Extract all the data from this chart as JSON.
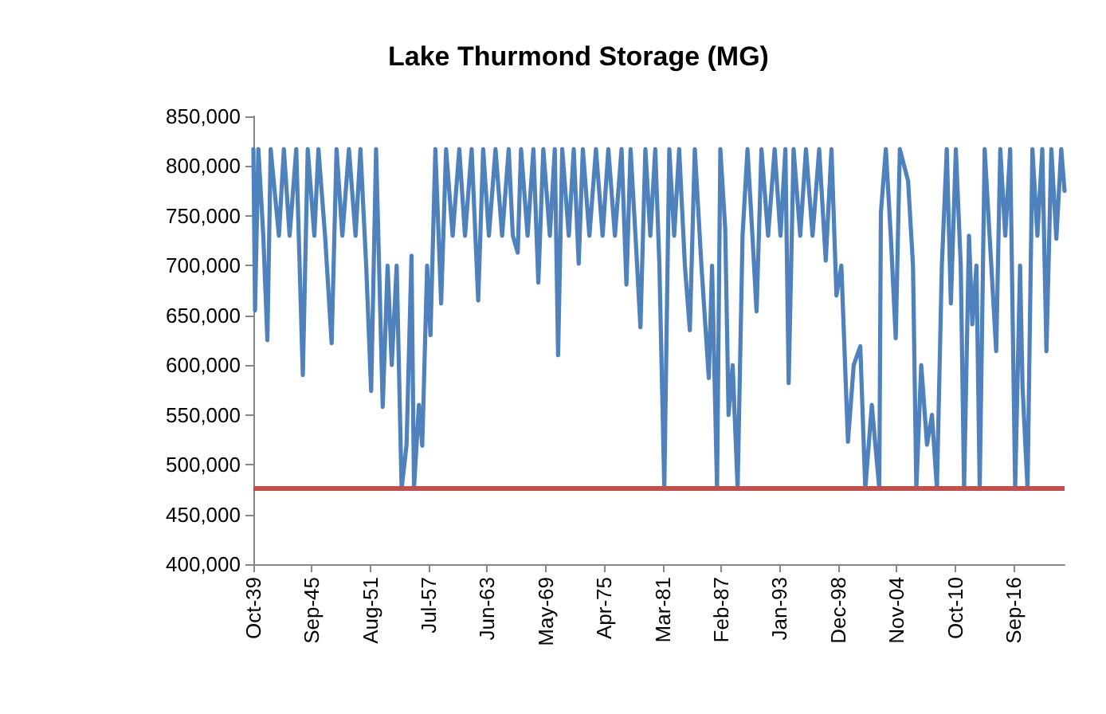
{
  "chart_data": {
    "type": "line",
    "title": "Lake Thurmond Storage (MG)",
    "x": [
      "1939-10",
      "1939-12",
      "1940-04",
      "1940-10",
      "1941-03",
      "1941-07",
      "1942-05",
      "1942-11",
      "1943-06",
      "1944-02",
      "1944-10",
      "1945-04",
      "1945-12",
      "1946-05",
      "1947-01",
      "1947-09",
      "1948-03",
      "1948-10",
      "1949-06",
      "1950-02",
      "1950-08",
      "1951-03",
      "1951-09",
      "1952-03",
      "1952-11",
      "1953-05",
      "1953-10",
      "1954-04",
      "1954-10",
      "1955-04",
      "1955-10",
      "1956-01",
      "1956-07",
      "1956-11",
      "1957-05",
      "1957-09",
      "1958-03",
      "1958-10",
      "1959-04",
      "1959-12",
      "1960-08",
      "1961-03",
      "1961-11",
      "1962-07",
      "1963-01",
      "1963-08",
      "1964-04",
      "1964-12",
      "1965-08",
      "1966-01",
      "1966-07",
      "1966-11",
      "1967-07",
      "1968-02",
      "1968-08",
      "1969-02",
      "1969-10",
      "1970-04",
      "1970-08",
      "1971-01",
      "1971-09",
      "1972-03",
      "1972-09",
      "1973-02",
      "1973-10",
      "1974-06",
      "1975-02",
      "1975-09",
      "1976-05",
      "1977-01",
      "1977-07",
      "1977-12",
      "1978-06",
      "1978-12",
      "1979-06",
      "1979-12",
      "1980-06",
      "1980-11",
      "1981-05",
      "1981-11",
      "1982-05",
      "1982-11",
      "1983-06",
      "1983-12",
      "1984-06",
      "1985-02",
      "1985-11",
      "1986-03",
      "1986-09",
      "1987-01",
      "1987-07",
      "1987-11",
      "1988-04",
      "1988-10",
      "1989-04",
      "1989-10",
      "1990-04",
      "1990-09",
      "1991-03",
      "1991-11",
      "1992-07",
      "1993-02",
      "1993-08",
      "1993-12",
      "1994-06",
      "1995-02",
      "1995-09",
      "1996-05",
      "1997-01",
      "1997-09",
      "1998-04",
      "1998-10",
      "1999-04",
      "1999-12",
      "2000-07",
      "2001-03",
      "2001-09",
      "2002-05",
      "2003-02",
      "2003-04",
      "2003-10",
      "2004-04",
      "2004-10",
      "2005-03",
      "2006-01",
      "2006-07",
      "2006-11",
      "2007-05",
      "2007-12",
      "2008-06",
      "2008-12",
      "2009-06",
      "2009-12",
      "2010-05",
      "2010-11",
      "2011-05",
      "2011-09",
      "2012-03",
      "2012-07",
      "2012-12",
      "2013-04",
      "2013-10",
      "2014-04",
      "2014-12",
      "2015-05",
      "2015-11",
      "2016-05",
      "2016-11",
      "2017-05",
      "2017-08",
      "2018-02",
      "2018-08",
      "2019-02",
      "2019-08",
      "2020-01",
      "2020-07",
      "2021-01",
      "2021-07",
      "2021-11"
    ],
    "series": [
      {
        "color": "#4f81bd",
        "values": [
          817000,
          655000,
          817000,
          730000,
          625000,
          817000,
          730000,
          817000,
          730000,
          817000,
          590000,
          817000,
          730000,
          817000,
          730000,
          622000,
          817000,
          730000,
          817000,
          730000,
          817000,
          700000,
          574000,
          817000,
          558000,
          700000,
          600000,
          700000,
          476000,
          520000,
          710000,
          476000,
          560000,
          519000,
          700000,
          630000,
          817000,
          662000,
          817000,
          730000,
          817000,
          730000,
          817000,
          665000,
          817000,
          730000,
          817000,
          730000,
          817000,
          730000,
          713000,
          817000,
          730000,
          817000,
          683000,
          817000,
          730000,
          817000,
          610000,
          817000,
          730000,
          817000,
          702000,
          817000,
          730000,
          817000,
          730000,
          817000,
          730000,
          817000,
          681000,
          817000,
          730000,
          638000,
          817000,
          730000,
          817000,
          700000,
          476000,
          817000,
          730000,
          817000,
          700000,
          635000,
          817000,
          700000,
          587000,
          700000,
          476000,
          817000,
          737000,
          550000,
          600000,
          476000,
          730000,
          817000,
          730000,
          654000,
          817000,
          730000,
          817000,
          730000,
          817000,
          582000,
          817000,
          730000,
          817000,
          730000,
          817000,
          705000,
          817000,
          670000,
          700000,
          523000,
          600000,
          619000,
          476000,
          560000,
          476000,
          753000,
          817000,
          730000,
          627000,
          817000,
          785000,
          700000,
          476000,
          600000,
          520000,
          550000,
          476000,
          700000,
          817000,
          662000,
          817000,
          700000,
          476000,
          730000,
          641000,
          700000,
          476000,
          817000,
          730000,
          614000,
          817000,
          730000,
          817000,
          476000,
          700000,
          578000,
          476000,
          817000,
          730000,
          817000,
          614000,
          817000,
          727000,
          817000,
          775000
        ]
      }
    ],
    "xlim": [
      "1939-10",
      "2021-11"
    ],
    "xticks": [
      {
        "value": "1939-10",
        "label": "Oct-39"
      },
      {
        "value": "1945-09",
        "label": "Sep-45"
      },
      {
        "value": "1951-08",
        "label": "Aug-51"
      },
      {
        "value": "1957-07",
        "label": "Jul-57"
      },
      {
        "value": "1963-06",
        "label": "Jun-63"
      },
      {
        "value": "1969-05",
        "label": "May-69"
      },
      {
        "value": "1975-04",
        "label": "Apr-75"
      },
      {
        "value": "1981-03",
        "label": "Mar-81"
      },
      {
        "value": "1987-02",
        "label": "Feb-87"
      },
      {
        "value": "1993-01",
        "label": "Jan-93"
      },
      {
        "value": "1998-12",
        "label": "Dec-98"
      },
      {
        "value": "2004-11",
        "label": "Nov-04"
      },
      {
        "value": "2010-10",
        "label": "Oct-10"
      },
      {
        "value": "2016-09",
        "label": "Sep-16"
      }
    ],
    "ylim": [
      400000,
      850000
    ],
    "yticks": [
      {
        "value": 400000,
        "label": "400,000"
      },
      {
        "value": 450000,
        "label": "450,000"
      },
      {
        "value": 500000,
        "label": "500,000"
      },
      {
        "value": 550000,
        "label": "550,000"
      },
      {
        "value": 600000,
        "label": "600,000"
      },
      {
        "value": 650000,
        "label": "650,000"
      },
      {
        "value": 700000,
        "label": "700,000"
      },
      {
        "value": 750000,
        "label": "750,000"
      },
      {
        "value": 800000,
        "label": "800,000"
      },
      {
        "value": 850000,
        "label": "850,000"
      }
    ],
    "ref_lines": [
      {
        "axis": "y",
        "value": 476000,
        "color": "#c0504d"
      }
    ],
    "grid": false
  }
}
